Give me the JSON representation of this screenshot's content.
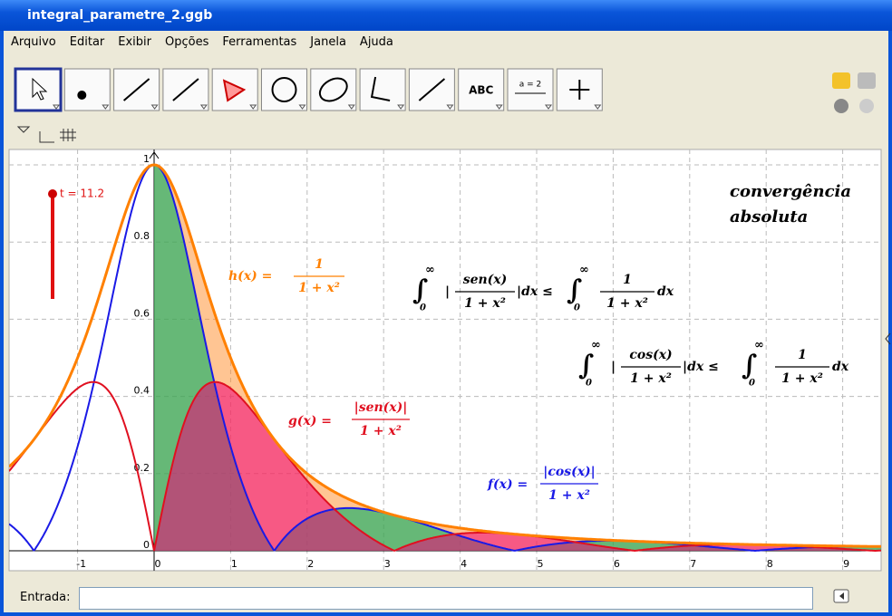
{
  "window": {
    "title": "integral_parametre_2.ggb"
  },
  "menu": [
    "Arquivo",
    "Editar",
    "Exibir",
    "Opções",
    "Ferramentas",
    "Janela",
    "Ajuda"
  ],
  "toolbar": {
    "text_tool": "ABC",
    "slider_tool": "a = 2"
  },
  "graphics": {
    "x_ticks": [
      -1,
      0,
      1,
      2,
      3,
      4,
      5,
      6,
      7,
      8,
      9
    ],
    "y_ticks": [
      0,
      0.2,
      0.4,
      0.6,
      0.8,
      1
    ],
    "slider": "t = 11.2",
    "note": [
      "convergência",
      "absoluta"
    ],
    "h": {
      "lhs": "h(x) =",
      "num": "1",
      "den": "1 + x²"
    },
    "g": {
      "lhs": "g(x) =",
      "num": "|sen(x)|",
      "den": "1 + x²"
    },
    "f": {
      "lhs": "f(x) =",
      "num": "|cos(x)|",
      "den": "1 + x²"
    },
    "integrals": [
      {
        "int": "∫",
        "upper": "∞",
        "lower": "0",
        "open": "|",
        "num": "sen(x)",
        "den": "1 + x²",
        "close": "|dx ≤",
        "num2": "1",
        "den2": "1 + x²",
        "end": "dx"
      },
      {
        "int": "∫",
        "upper": "∞",
        "lower": "0",
        "open": "|",
        "num": "cos(x)",
        "den": "1 + x²",
        "close": "|dx ≤",
        "num2": "1",
        "den2": "1 + x²",
        "end": "dx"
      }
    ]
  },
  "input": {
    "label": "Entrada:"
  }
}
